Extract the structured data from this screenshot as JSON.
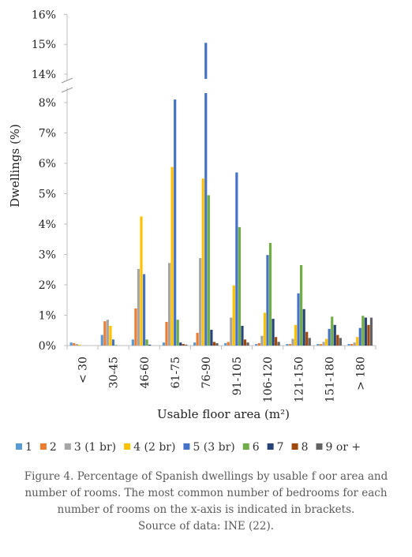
{
  "chart_data": {
    "type": "bar",
    "title": "",
    "xlabel": "Usable floor area (m²)",
    "ylabel": "Dwellings (%)",
    "categories": [
      "< 30",
      "30-45",
      "46-60",
      "61-75",
      "76-90",
      "91-105",
      "106-120",
      "121-150",
      "151-180",
      "> 180"
    ],
    "yticks_lower": [
      "0%",
      "1%",
      "2%",
      "3%",
      "4%",
      "5%",
      "6%",
      "7%",
      "8%"
    ],
    "yticks_upper": [
      "14%",
      "15%",
      "16%"
    ],
    "ylim_lower": [
      0,
      8.5
    ],
    "ylim_upper": [
      13.8,
      16
    ],
    "axis_break": "between 8% and 14%",
    "legend_position": "bottom",
    "grid": false,
    "series": [
      {
        "name": "1",
        "color": "#5b9bd5",
        "values": [
          0.1,
          0.35,
          0.2,
          0.1,
          0.1,
          0.08,
          0.05,
          0.05,
          0.05,
          0.05
        ]
      },
      {
        "name": "2",
        "color": "#ed7d31",
        "values": [
          0.08,
          0.8,
          1.22,
          0.78,
          0.42,
          0.12,
          0.08,
          0.05,
          0.05,
          0.05
        ]
      },
      {
        "name": "3 (1 br)",
        "color": "#a5a5a5",
        "values": [
          0.05,
          0.85,
          2.52,
          2.72,
          2.88,
          0.92,
          0.32,
          0.22,
          0.12,
          0.1
        ]
      },
      {
        "name": "4 (2 br)",
        "color": "#ffc000",
        "values": [
          0.03,
          0.65,
          4.25,
          5.88,
          5.5,
          1.98,
          1.08,
          0.68,
          0.22,
          0.28
        ]
      },
      {
        "name": "5 (3 br)",
        "color": "#4472c4",
        "values": [
          0.0,
          0.2,
          2.35,
          8.1,
          15.05,
          5.7,
          2.98,
          1.72,
          0.55,
          0.58
        ]
      },
      {
        "name": "6",
        "color": "#70ad47",
        "values": [
          0.0,
          0.02,
          0.2,
          0.85,
          4.95,
          3.9,
          3.38,
          2.65,
          0.95,
          0.98
        ]
      },
      {
        "name": "7",
        "color": "#264478",
        "values": [
          0.0,
          0.0,
          0.03,
          0.1,
          0.52,
          0.65,
          0.88,
          1.2,
          0.68,
          0.92
        ]
      },
      {
        "name": "8",
        "color": "#9e480e",
        "values": [
          0.0,
          0.0,
          0.0,
          0.05,
          0.12,
          0.2,
          0.28,
          0.45,
          0.35,
          0.68
        ]
      },
      {
        "name": "9 or +",
        "color": "#636363",
        "values": [
          0.0,
          0.0,
          0.0,
          0.03,
          0.08,
          0.1,
          0.12,
          0.25,
          0.25,
          0.92
        ]
      }
    ]
  },
  "caption": {
    "lines": [
      "Figure 4. Percentage of Spanish dwellings by usable  f oor area and",
      "number of rooms. The most common number of bedrooms for each",
      "number of rooms on the x-axis is indicated in brackets.",
      "Source of data: INE (22)."
    ]
  }
}
